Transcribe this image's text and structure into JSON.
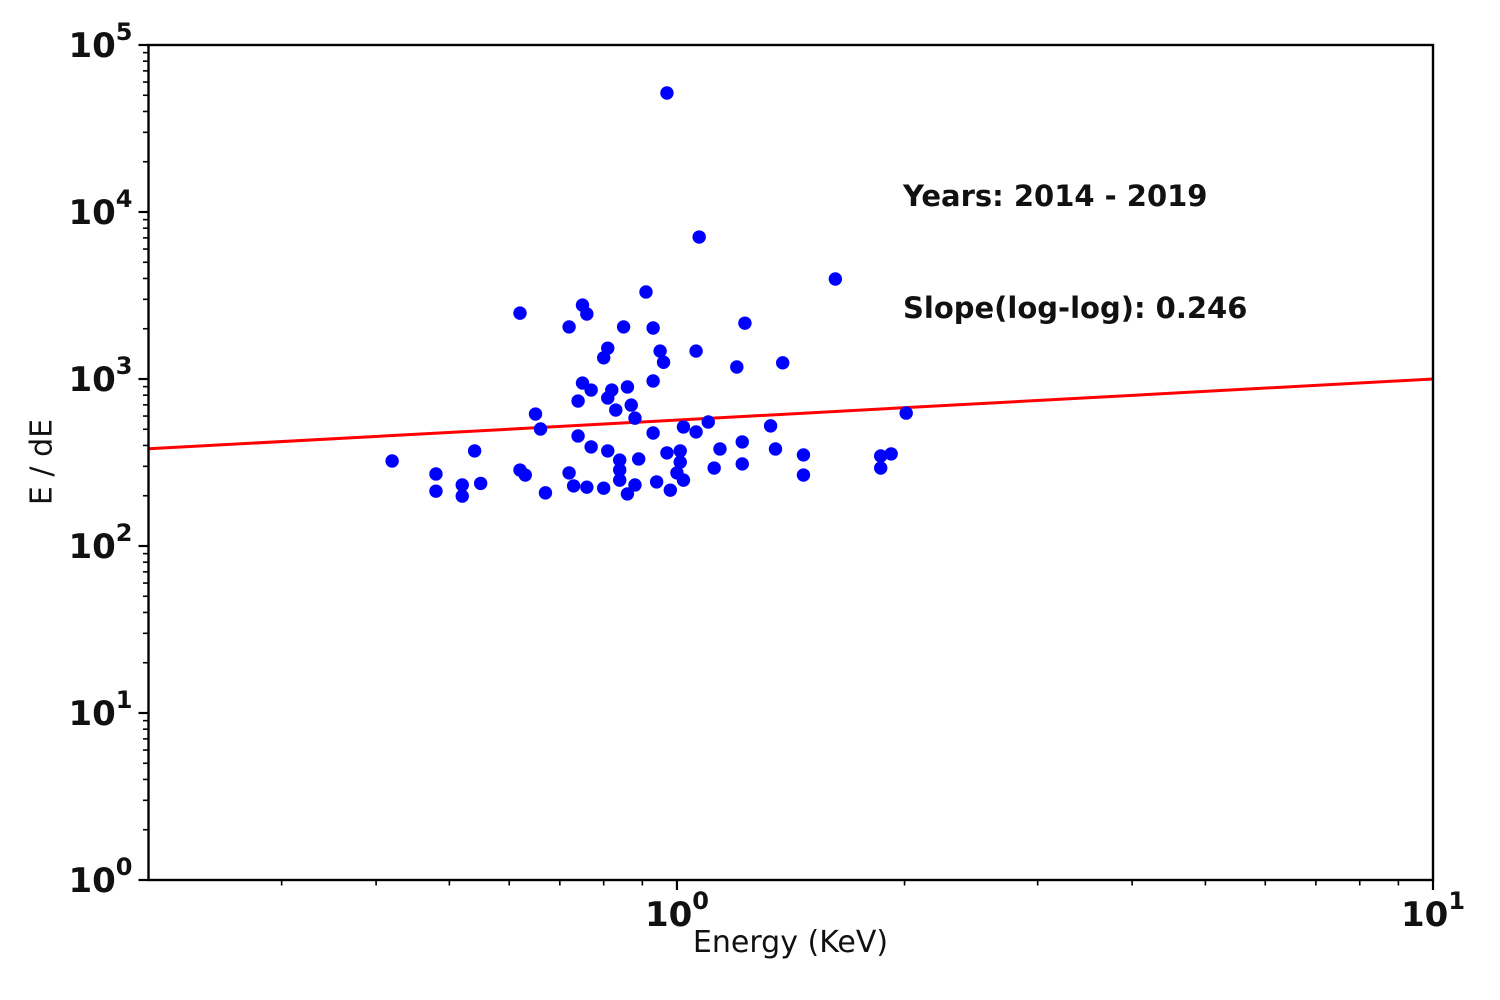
{
  "annotation": {
    "line1": "Years: 2014 - 2019",
    "line2": "Slope(log-log): 0.246"
  },
  "axes": {
    "xlabel": "Energy (KeV)",
    "ylabel": "E / dE",
    "x_scale": "log",
    "y_scale": "log",
    "xlim": [
      0.2,
      10
    ],
    "ylim": [
      1,
      100000
    ],
    "xticks": [
      {
        "value": 1,
        "base": "10",
        "exp": "0"
      },
      {
        "value": 10,
        "base": "10",
        "exp": "1"
      }
    ],
    "yticks": [
      {
        "value": 1,
        "base": "10",
        "exp": "0"
      },
      {
        "value": 10,
        "base": "10",
        "exp": "1"
      },
      {
        "value": 100,
        "base": "10",
        "exp": "2"
      },
      {
        "value": 1000,
        "base": "10",
        "exp": "3"
      },
      {
        "value": 10000,
        "base": "10",
        "exp": "4"
      },
      {
        "value": 100000,
        "base": "10",
        "exp": "5"
      }
    ],
    "spine_color": "#000000",
    "tick_color": "#000000"
  },
  "chart_data": {
    "type": "scatter",
    "title": "",
    "xlabel": "Energy (KeV)",
    "ylabel": "E / dE",
    "marker_color": "#0000ff",
    "points": [
      [
        0.97,
        51600
      ],
      [
        1.07,
        7080
      ],
      [
        0.91,
        3320
      ],
      [
        1.62,
        3970
      ],
      [
        0.62,
        2480
      ],
      [
        0.75,
        2770
      ],
      [
        0.76,
        2450
      ],
      [
        0.72,
        2050
      ],
      [
        0.85,
        2050
      ],
      [
        0.93,
        2020
      ],
      [
        1.23,
        2160
      ],
      [
        0.81,
        1530
      ],
      [
        0.8,
        1340
      ],
      [
        1.06,
        1470
      ],
      [
        0.96,
        1260
      ],
      [
        0.95,
        1470
      ],
      [
        1.2,
        1180
      ],
      [
        1.38,
        1250
      ],
      [
        0.75,
        946
      ],
      [
        0.77,
        859
      ],
      [
        0.82,
        859
      ],
      [
        0.81,
        770
      ],
      [
        0.93,
        973
      ],
      [
        0.86,
        896
      ],
      [
        0.74,
        738
      ],
      [
        0.83,
        652
      ],
      [
        0.87,
        698
      ],
      [
        0.88,
        583
      ],
      [
        0.65,
        617
      ],
      [
        0.66,
        502
      ],
      [
        2.01,
        625
      ],
      [
        1.1,
        553
      ],
      [
        1.02,
        516
      ],
      [
        1.06,
        482
      ],
      [
        1.33,
        524
      ],
      [
        0.93,
        475
      ],
      [
        0.74,
        456
      ],
      [
        0.77,
        392
      ],
      [
        0.81,
        371
      ],
      [
        0.72,
        274
      ],
      [
        0.73,
        229
      ],
      [
        0.76,
        225
      ],
      [
        0.8,
        222
      ],
      [
        0.84,
        327
      ],
      [
        0.84,
        285
      ],
      [
        0.84,
        248
      ],
      [
        0.89,
        332
      ],
      [
        0.88,
        232
      ],
      [
        0.86,
        205
      ],
      [
        0.94,
        242
      ],
      [
        0.97,
        361
      ],
      [
        0.98,
        216
      ],
      [
        1.01,
        371
      ],
      [
        1.01,
        318
      ],
      [
        1.0,
        274
      ],
      [
        1.02,
        248
      ],
      [
        0.42,
        323
      ],
      [
        0.54,
        371
      ],
      [
        0.48,
        270
      ],
      [
        0.48,
        213
      ],
      [
        0.52,
        232
      ],
      [
        0.52,
        199
      ],
      [
        0.55,
        237
      ],
      [
        0.62,
        285
      ],
      [
        0.63,
        266
      ],
      [
        0.67,
        208
      ],
      [
        1.14,
        381
      ],
      [
        1.22,
        420
      ],
      [
        1.12,
        293
      ],
      [
        1.22,
        310
      ],
      [
        1.35,
        381
      ],
      [
        1.47,
        351
      ],
      [
        1.47,
        266
      ],
      [
        1.86,
        346
      ],
      [
        1.92,
        356
      ],
      [
        1.86,
        293
      ]
    ],
    "trend_line": {
      "slope": 0.246,
      "log10_y_at_x1": 2.754,
      "x_start": 0.2,
      "x_end": 10,
      "color": "#ff0000"
    },
    "annotation_lines": [
      "Years: 2014 - 2019",
      "Slope(log-log): 0.246"
    ]
  }
}
